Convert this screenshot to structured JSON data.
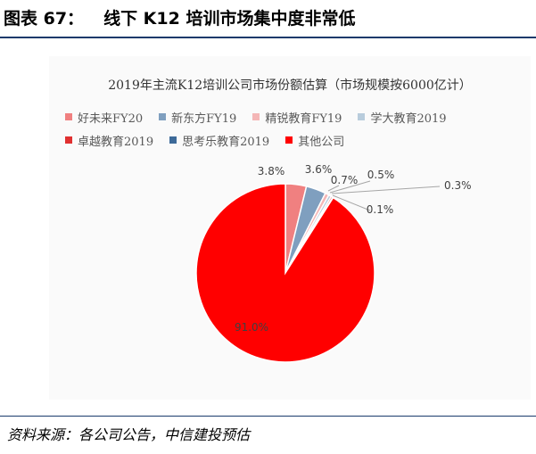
{
  "figure": {
    "number_label": "图表 67：",
    "heading": "线下 K12 培训市场集中度非常低"
  },
  "chart_data": {
    "type": "pie",
    "title": "2019年主流K12培训公司市场份额估算（市场规模按6000亿计）",
    "legend_position": "top",
    "slices": [
      {
        "label": "好未来FY20",
        "value": 3.8,
        "display": "3.8%",
        "color": "#f08080"
      },
      {
        "label": "新东方FY19",
        "value": 3.6,
        "display": "3.6%",
        "color": "#7f9fbf"
      },
      {
        "label": "精锐教育FY19",
        "value": 0.7,
        "display": "0.7%",
        "color": "#f4b6b6"
      },
      {
        "label": "学大教育2019",
        "value": 0.5,
        "display": "0.5%",
        "color": "#b8ccdc"
      },
      {
        "label": "卓越教育2019",
        "value": 0.3,
        "display": "0.3%",
        "color": "#e03030"
      },
      {
        "label": "思考乐教育2019",
        "value": 0.1,
        "display": "0.1%",
        "color": "#3d6a99"
      },
      {
        "label": "其他公司",
        "value": 91.0,
        "display": "91.0%",
        "color": "#ff0000"
      }
    ]
  },
  "source": "资料来源：各公司公告，中信建投预估"
}
